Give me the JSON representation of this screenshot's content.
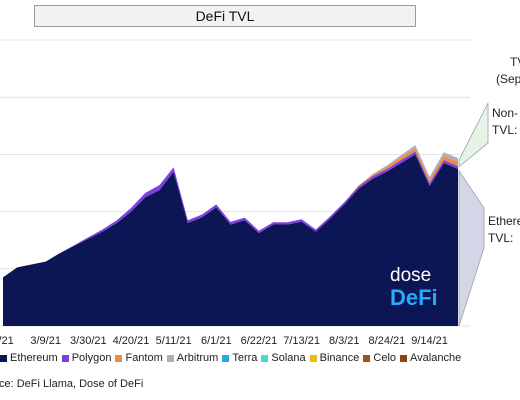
{
  "title": "DeFi TVL",
  "callouts": {
    "tvl_line1": "TV",
    "tvl_line2": "(Sep",
    "nonl_line1": "Non-",
    "nonl_line2": "TVL:",
    "eth_line1": "Ethere",
    "eth_line2": "TVL:"
  },
  "logo": {
    "line1": "dose",
    "line2": "DeFi"
  },
  "source": "ce: DeFi Llama, Dose of DeFi",
  "colors": {
    "Ethereum": "#0d1654",
    "Polygon": "#7b3fe4",
    "Fantom": "#f08c3a",
    "Arbitrum": "#a8b2bd",
    "Terra": "#2aa8e0",
    "Solana": "#3de0c4",
    "Binance": "#f0b90b",
    "Celo": "#a0521a",
    "Avalanche": "#8b4513",
    "callout_fill": "#e6f3e6",
    "callout_fill_eth": "#d2d6e6"
  },
  "chart_data": {
    "type": "area",
    "stacked": true,
    "x": [
      "2/16/21",
      "2/23/21",
      "3/2/21",
      "3/9/21",
      "3/16/21",
      "3/23/21",
      "3/30/21",
      "4/6/21",
      "4/13/21",
      "4/20/21",
      "4/27/21",
      "5/4/21",
      "5/11/21",
      "5/18/21",
      "5/25/21",
      "6/1/21",
      "6/8/21",
      "6/15/21",
      "6/22/21",
      "6/29/21",
      "7/6/21",
      "7/13/21",
      "7/20/21",
      "7/27/21",
      "8/3/21",
      "8/10/21",
      "8/17/21",
      "8/24/21",
      "8/31/21",
      "9/7/21",
      "9/14/21",
      "9/21/21",
      "9/28/21"
    ],
    "x_tick_labels": [
      "6/21",
      "3/9/21",
      "3/30/21",
      "4/20/21",
      "5/11/21",
      "6/1/21",
      "6/22/21",
      "7/13/21",
      "8/3/21",
      "8/24/21",
      "9/14/21"
    ],
    "series": [
      {
        "name": "Ethereum",
        "values": [
          34,
          41,
          43,
          45,
          51,
          56,
          61,
          66,
          72,
          80,
          90,
          95,
          108,
          72,
          76,
          83,
          71,
          74,
          65,
          71,
          71,
          73,
          66,
          75,
          85,
          96,
          103,
          108,
          114,
          120,
          98,
          114,
          110
        ]
      },
      {
        "name": "Polygon",
        "values": [
          0,
          0,
          0,
          0,
          0,
          0.5,
          1,
          1.5,
          2,
          2.5,
          3,
          3.5,
          3,
          2,
          2,
          2,
          1.8,
          1.8,
          1.6,
          1.6,
          1.6,
          1.6,
          1.5,
          1.6,
          1.6,
          1.7,
          1.8,
          1.8,
          2,
          2,
          1.9,
          2,
          1.9
        ]
      },
      {
        "name": "Fantom",
        "values": [
          0,
          0,
          0,
          0,
          0,
          0,
          0,
          0,
          0,
          0,
          0,
          0,
          0,
          0,
          0,
          0,
          0,
          0,
          0,
          0,
          0,
          0,
          0,
          0,
          0,
          0.5,
          1,
          1.5,
          2,
          2.5,
          2.5,
          3,
          3
        ]
      },
      {
        "name": "Arbitrum",
        "values": [
          0,
          0,
          0,
          0,
          0,
          0,
          0,
          0,
          0,
          0,
          0,
          0,
          0,
          0,
          0,
          0,
          0,
          0,
          0,
          0,
          0,
          0,
          0,
          0,
          0,
          0,
          0.5,
          1,
          1.5,
          2,
          2,
          2.5,
          2.5
        ]
      },
      {
        "name": "Terra",
        "values": [
          0,
          0,
          0,
          0,
          0,
          0,
          0,
          0,
          0,
          0,
          0,
          0,
          0,
          0,
          0,
          0,
          0,
          0,
          0,
          0,
          0,
          0,
          0,
          0,
          0,
          0,
          0,
          0,
          0,
          0,
          0,
          0,
          0
        ]
      },
      {
        "name": "Solana",
        "values": [
          0,
          0,
          0,
          0,
          0,
          0,
          0,
          0,
          0,
          0,
          0,
          0,
          0,
          0,
          0,
          0,
          0,
          0,
          0,
          0,
          0,
          0,
          0,
          0,
          0,
          0,
          0,
          0,
          0,
          0,
          0,
          0,
          0
        ]
      },
      {
        "name": "Binance",
        "values": [
          0,
          0,
          0,
          0,
          0,
          0,
          0,
          0,
          0,
          0,
          0,
          0,
          0,
          0,
          0,
          0,
          0,
          0,
          0,
          0,
          0,
          0,
          0,
          0,
          0,
          0,
          0,
          0,
          0,
          0,
          0,
          0,
          0
        ]
      },
      {
        "name": "Celo",
        "values": [
          0,
          0,
          0,
          0,
          0,
          0,
          0,
          0,
          0,
          0,
          0,
          0,
          0,
          0,
          0,
          0,
          0,
          0,
          0,
          0,
          0,
          0,
          0,
          0,
          0,
          0,
          0,
          0,
          0,
          0,
          0,
          0,
          0
        ]
      },
      {
        "name": "Avalanche",
        "values": [
          0,
          0,
          0,
          0,
          0,
          0,
          0,
          0,
          0,
          0,
          0,
          0,
          0,
          0,
          0,
          0,
          0,
          0,
          0,
          0,
          0,
          0,
          0,
          0,
          0,
          0,
          0,
          0,
          0,
          0,
          0,
          0,
          0
        ]
      }
    ],
    "ylim": [
      0,
      200
    ],
    "grid": true,
    "legend_position": "bottom"
  }
}
